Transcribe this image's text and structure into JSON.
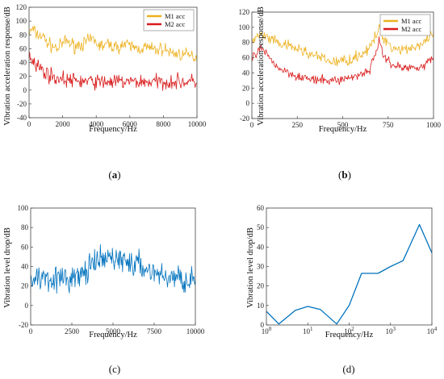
{
  "figure": {
    "panels": [
      {
        "caption_label": "a",
        "caption_bold": true
      },
      {
        "caption_label": "b",
        "caption_bold": true
      },
      {
        "caption_label": "c",
        "caption_bold": false
      },
      {
        "caption_label": "d",
        "caption_bold": false
      }
    ]
  },
  "chart_data": [
    {
      "type": "line",
      "xlabel": "Frequency/Hz",
      "ylabel": "Vibration acceleration response/dB",
      "xlim": [
        0,
        10000
      ],
      "ylim": [
        -40,
        120
      ],
      "xticks": [
        0,
        2000,
        4000,
        6000,
        8000,
        10000
      ],
      "yticks": [
        -40,
        -20,
        0,
        20,
        40,
        60,
        80,
        100,
        120
      ],
      "legend_position": "top-right",
      "grid": false,
      "series": [
        {
          "name": "M1 acc",
          "color": "#EDB120",
          "envelope_x": [
            0,
            200,
            500,
            800,
            1200,
            1700,
            2200,
            2700,
            3300,
            3800,
            4200,
            4700,
            5200,
            5600,
            6000,
            6500,
            7000,
            7500,
            8000,
            8500,
            9000,
            9500,
            10000
          ],
          "envelope_mean": [
            82,
            88,
            80,
            78,
            66,
            60,
            72,
            64,
            68,
            74,
            64,
            66,
            62,
            66,
            64,
            60,
            62,
            58,
            60,
            54,
            52,
            50,
            48
          ],
          "noise_amplitude": 14
        },
        {
          "name": "M2 acc",
          "color": "#D91A1A",
          "envelope_x": [
            0,
            300,
            800,
            1500,
            2500,
            4000,
            6000,
            8000,
            10000
          ],
          "envelope_mean": [
            50,
            42,
            28,
            18,
            14,
            12,
            12,
            12,
            12
          ],
          "noise_amplitude": 16
        }
      ]
    },
    {
      "type": "line",
      "xlabel": "Frequency/Hz",
      "ylabel": "Vibration acceleration response/dB",
      "xlim": [
        0,
        1000
      ],
      "ylim": [
        -20,
        120
      ],
      "xticks": [
        0,
        250,
        500,
        750,
        1000
      ],
      "yticks": [
        -20,
        0,
        20,
        40,
        60,
        80,
        100,
        120
      ],
      "legend_position": "top-right",
      "grid": false,
      "series": [
        {
          "name": "M1 acc",
          "color": "#EDB120",
          "envelope_x": [
            0,
            50,
            150,
            250,
            350,
            450,
            550,
            650,
            700,
            720,
            780,
            850,
            950,
            1000
          ],
          "envelope_mean": [
            82,
            90,
            78,
            72,
            62,
            54,
            58,
            72,
            98,
            88,
            72,
            72,
            78,
            92
          ],
          "noise_amplitude": 11
        },
        {
          "name": "M2 acc",
          "color": "#D91A1A",
          "envelope_x": [
            0,
            50,
            150,
            250,
            350,
            450,
            550,
            650,
            700,
            720,
            780,
            850,
            950,
            1000
          ],
          "envelope_mean": [
            58,
            72,
            46,
            36,
            30,
            30,
            34,
            44,
            82,
            64,
            50,
            46,
            50,
            60
          ],
          "noise_amplitude": 9
        }
      ]
    },
    {
      "type": "line",
      "xlabel": "Frequency/Hz",
      "ylabel": "Vibration level drop/dB",
      "xlim": [
        0,
        10000
      ],
      "ylim": [
        -20,
        100
      ],
      "xticks": [
        0,
        2500,
        5000,
        7500,
        10000
      ],
      "yticks": [
        -20,
        0,
        20,
        40,
        60,
        80,
        100
      ],
      "grid": false,
      "series": [
        {
          "color": "#0072BD",
          "envelope_x": [
            0,
            1000,
            2000,
            3000,
            4000,
            5000,
            6000,
            7000,
            8000,
            9000,
            10000
          ],
          "envelope_mean": [
            28,
            30,
            26,
            30,
            44,
            50,
            44,
            38,
            30,
            28,
            26
          ],
          "noise_amplitude": 20
        }
      ]
    },
    {
      "type": "line",
      "xlabel": "Frequency/Hz",
      "ylabel": "Vibration level drop/dB",
      "xscale": "log",
      "xlim": [
        1,
        10000
      ],
      "ylim": [
        0,
        60
      ],
      "xticks": [
        1,
        10,
        100,
        1000,
        10000
      ],
      "yticks": [
        0,
        10,
        20,
        30,
        40,
        50,
        60
      ],
      "grid": false,
      "series": [
        {
          "color": "#0072BD",
          "x": [
            1,
            2,
            5,
            10,
            20,
            50,
            100,
            200,
            500,
            1000,
            2000,
            5000,
            10000
          ],
          "y": [
            7,
            0.5,
            7.5,
            9.5,
            8,
            0.5,
            10,
            26.5,
            26.5,
            30,
            33,
            51.5,
            37
          ]
        }
      ]
    }
  ]
}
